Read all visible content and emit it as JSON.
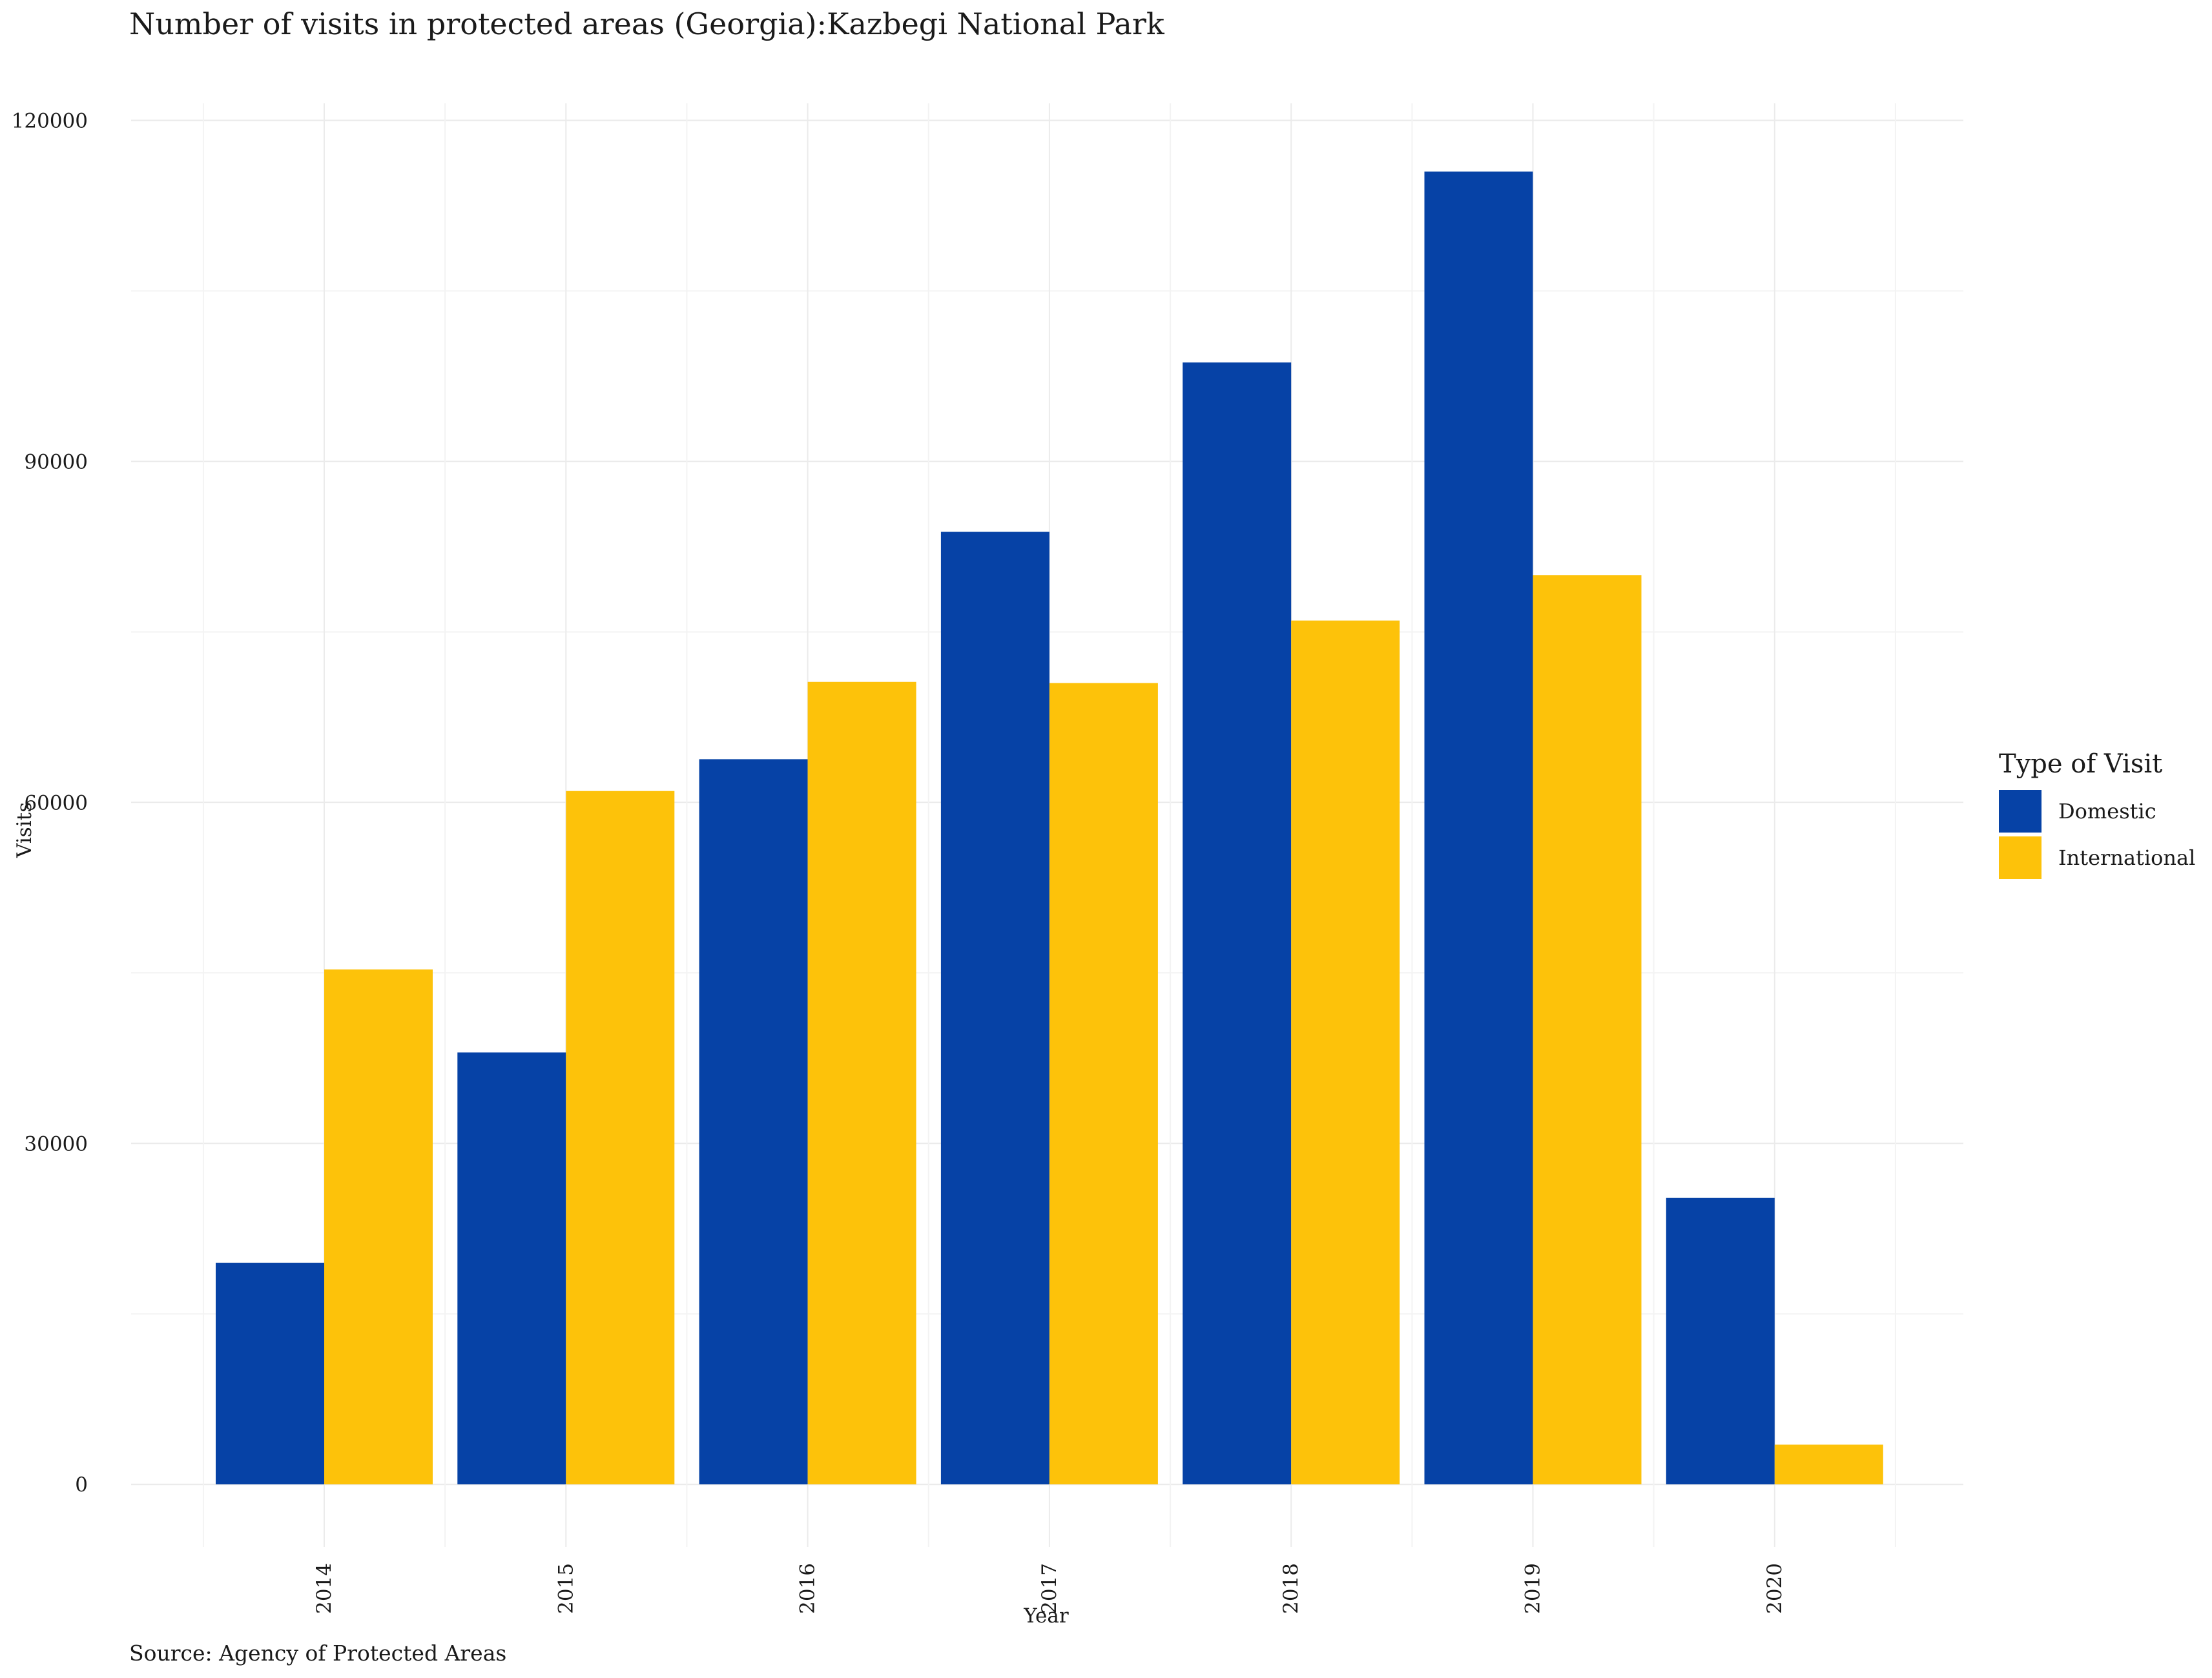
{
  "chart_data": {
    "type": "bar",
    "title": "Number of visits in protected areas (Georgia):Kazbegi National Park",
    "caption": "Source: Agency of Protected Areas",
    "xlabel": "Year",
    "ylabel": "Visits",
    "categories": [
      "2014",
      "2015",
      "2016",
      "2017",
      "2018",
      "2019",
      "2020"
    ],
    "series": [
      {
        "name": "Domestic",
        "color": "#0642A6",
        "values": [
          19500,
          38000,
          63800,
          83800,
          98700,
          115500,
          25200
        ]
      },
      {
        "name": "International",
        "color": "#FDC20A",
        "values": [
          45300,
          61000,
          70600,
          70500,
          76000,
          80000,
          3500
        ]
      }
    ],
    "yticks": [
      0,
      30000,
      60000,
      90000,
      120000
    ],
    "ytick_labels": [
      "0",
      "30000",
      "60000",
      "90000",
      "120000"
    ],
    "ylim": [
      -5500,
      121500
    ],
    "grid": true,
    "legend": {
      "title": "Type of Visit",
      "position": "right"
    }
  }
}
